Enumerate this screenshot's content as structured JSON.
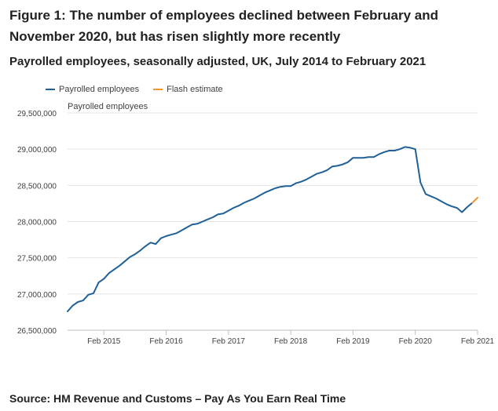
{
  "title": "Figure 1: The number of employees declined between February and November 2020, but has risen slightly more recently",
  "subtitle": "Payrolled employees, seasonally adjusted, UK, July 2014 to February 2021",
  "source": "Source: HM Revenue and Customs – Pay As You Earn Real Time",
  "chart_data": {
    "type": "line",
    "ylabel": "Payrolled employees",
    "ylim": [
      26500000,
      29500000
    ],
    "yticks": [
      26500000,
      27000000,
      27500000,
      28000000,
      28500000,
      29000000,
      29500000
    ],
    "ytick_labels": [
      "26,500,000",
      "27,000,000",
      "27,500,000",
      "28,000,000",
      "28,500,000",
      "29,000,000",
      "29,500,000"
    ],
    "xticks": [
      "Feb 2015",
      "Feb 2016",
      "Feb 2017",
      "Feb 2018",
      "Feb 2019",
      "Feb 2020",
      "Feb 2021"
    ],
    "xrange": [
      "Jul 2014",
      "Feb 2021"
    ],
    "grid": true,
    "legend_position": "top-left",
    "series": [
      {
        "name": "Payrolled employees",
        "color": "#206095",
        "x": [
          "Jul 2014",
          "Aug 2014",
          "Sep 2014",
          "Oct 2014",
          "Nov 2014",
          "Dec 2014",
          "Jan 2015",
          "Feb 2015",
          "Mar 2015",
          "Apr 2015",
          "May 2015",
          "Jun 2015",
          "Jul 2015",
          "Aug 2015",
          "Sep 2015",
          "Oct 2015",
          "Nov 2015",
          "Dec 2015",
          "Jan 2016",
          "Feb 2016",
          "Mar 2016",
          "Apr 2016",
          "May 2016",
          "Jun 2016",
          "Jul 2016",
          "Aug 2016",
          "Sep 2016",
          "Oct 2016",
          "Nov 2016",
          "Dec 2016",
          "Jan 2017",
          "Feb 2017",
          "Mar 2017",
          "Apr 2017",
          "May 2017",
          "Jun 2017",
          "Jul 2017",
          "Aug 2017",
          "Sep 2017",
          "Oct 2017",
          "Nov 2017",
          "Dec 2017",
          "Jan 2018",
          "Feb 2018",
          "Mar 2018",
          "Apr 2018",
          "May 2018",
          "Jun 2018",
          "Jul 2018",
          "Aug 2018",
          "Sep 2018",
          "Oct 2018",
          "Nov 2018",
          "Dec 2018",
          "Jan 2019",
          "Feb 2019",
          "Mar 2019",
          "Apr 2019",
          "May 2019",
          "Jun 2019",
          "Jul 2019",
          "Aug 2019",
          "Sep 2019",
          "Oct 2019",
          "Nov 2019",
          "Dec 2019",
          "Jan 2020",
          "Feb 2020",
          "Mar 2020",
          "Apr 2020",
          "May 2020",
          "Jun 2020",
          "Jul 2020",
          "Aug 2020",
          "Sep 2020",
          "Oct 2020",
          "Nov 2020",
          "Dec 2020",
          "Jan 2021"
        ],
        "values": [
          26760000,
          26840000,
          26890000,
          26910000,
          26990000,
          27010000,
          27160000,
          27210000,
          27290000,
          27340000,
          27390000,
          27450000,
          27510000,
          27550000,
          27600000,
          27660000,
          27710000,
          27690000,
          27770000,
          27800000,
          27820000,
          27840000,
          27880000,
          27920000,
          27960000,
          27970000,
          28000000,
          28030000,
          28060000,
          28100000,
          28110000,
          28150000,
          28190000,
          28220000,
          28260000,
          28290000,
          28320000,
          28360000,
          28400000,
          28430000,
          28460000,
          28480000,
          28490000,
          28490000,
          28530000,
          28550000,
          28580000,
          28620000,
          28660000,
          28680000,
          28710000,
          28760000,
          28770000,
          28790000,
          28820000,
          28880000,
          28880000,
          28880000,
          28890000,
          28890000,
          28930000,
          28960000,
          28980000,
          28980000,
          29000000,
          29030000,
          29020000,
          29000000,
          28540000,
          28380000,
          28350000,
          28320000,
          28280000,
          28240000,
          28210000,
          28190000,
          28130000,
          28200000,
          28260000
        ]
      },
      {
        "name": "Flash estimate",
        "color": "#f39431",
        "x": [
          "Jan 2021",
          "Feb 2021"
        ],
        "values": [
          28260000,
          28330000
        ]
      }
    ]
  }
}
